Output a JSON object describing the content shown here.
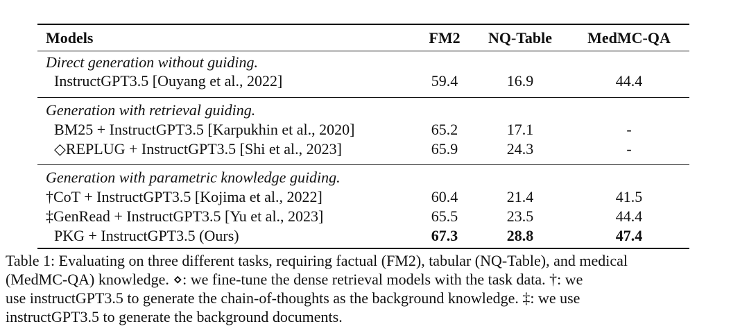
{
  "table": {
    "header": {
      "models": "Models",
      "fm2": "FM2",
      "nq": "NQ-Table",
      "med": "MedMC-QA"
    },
    "groups": [
      {
        "title": "Direct generation without guiding.",
        "rows": [
          {
            "model": "InstructGPT3.5 [Ouyang et al., 2022]",
            "fm2": "59.4",
            "nq": "16.9",
            "med": "44.4"
          }
        ]
      },
      {
        "title": "Generation with retrieval guiding.",
        "rows": [
          {
            "model": "BM25 + InstructGPT3.5 [Karpukhin et al., 2020]",
            "fm2": "65.2",
            "nq": "17.1",
            "med": "-"
          },
          {
            "model": "◇REPLUG + InstructGPT3.5 [Shi et al., 2023]",
            "fm2": "65.9",
            "nq": "24.3",
            "med": "-"
          }
        ]
      },
      {
        "title": "Generation with parametric knowledge guiding.",
        "rows": [
          {
            "model": "†CoT + InstructGPT3.5 [Kojima et al., 2022]",
            "fm2": "60.4",
            "nq": "21.4",
            "med": "41.5"
          },
          {
            "model": "‡GenRead + InstructGPT3.5 [Yu et al., 2023]",
            "fm2": "65.5",
            "nq": "23.5",
            "med": "44.4"
          },
          {
            "model": "PKG + InstructGPT3.5 (Ours)",
            "fm2": "67.3",
            "nq": "28.8",
            "med": "47.4"
          }
        ]
      }
    ]
  },
  "caption": {
    "lines": [
      "Table 1: Evaluating on three different tasks, requiring factual (FM2), tabular (NQ-Table), and medical",
      "(MedMC-QA) knowledge. ⋄: we fine-tune the dense retrieval models with the task data. †: we",
      "use instructGPT3.5 to generate the chain-of-thoughts as the background knowledge. ‡: we use",
      "instructGPT3.5 to generate the background documents."
    ]
  }
}
